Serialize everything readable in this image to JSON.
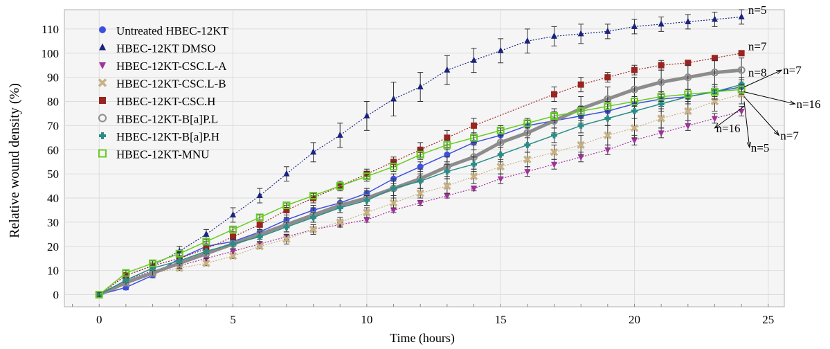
{
  "chart_data": {
    "type": "line",
    "title": "",
    "xlabel": "Time (hours)",
    "ylabel": "Relative wound density (%)",
    "xlim": [
      -1.3,
      25.6
    ],
    "ylim": [
      -5,
      118
    ],
    "x_ticks": [
      0,
      5,
      10,
      15,
      20,
      25
    ],
    "y_ticks": [
      0,
      10,
      20,
      30,
      40,
      50,
      60,
      70,
      80,
      90,
      100,
      110
    ],
    "grid": true,
    "legend_position": "top-left",
    "x": [
      0,
      1,
      2,
      3,
      4,
      5,
      6,
      7,
      8,
      9,
      10,
      11,
      12,
      13,
      14,
      15,
      16,
      17,
      18,
      19,
      20,
      21,
      22,
      23,
      24
    ],
    "series": [
      {
        "name": "Untreated HBEC-12KT",
        "color": "#3c50e0",
        "marker": "circle",
        "line": "solid",
        "values": [
          0,
          3,
          8,
          15,
          20,
          22,
          26,
          31,
          35,
          38,
          42,
          48,
          53,
          58,
          63,
          66,
          70,
          72,
          74,
          76,
          79,
          81,
          82,
          84,
          86
        ],
        "errors": [
          1,
          1,
          1,
          1,
          2,
          2,
          2,
          2,
          2,
          2,
          2,
          2,
          2,
          3,
          3,
          3,
          3,
          3,
          3,
          3,
          3,
          3,
          3,
          3,
          3
        ]
      },
      {
        "name": "HBEC-12KT DMSO",
        "color": "#1a237e",
        "marker": "triangle-up",
        "line": "dotted",
        "values": [
          0,
          8,
          12,
          18,
          25,
          33,
          41,
          50,
          59,
          66,
          74,
          81,
          86,
          93,
          97,
          101,
          105,
          107,
          108,
          109,
          111,
          112,
          113,
          114,
          115
        ],
        "errors": [
          1,
          1,
          1,
          2,
          2,
          3,
          3,
          3,
          4,
          5,
          6,
          7,
          6,
          6,
          5,
          5,
          5,
          4,
          4,
          3,
          3,
          3,
          3,
          3,
          3
        ]
      },
      {
        "name": "HBEC-12KT-CSC.L-A",
        "color": "#a0309a",
        "marker": "triangle-down",
        "line": "dotted",
        "values": [
          0,
          6,
          10,
          12,
          15,
          18,
          21,
          24,
          27,
          29,
          31,
          35,
          38,
          41,
          44,
          48,
          51,
          54,
          57,
          60,
          64,
          67,
          70,
          73,
          76
        ],
        "errors": [
          1,
          1,
          1,
          1,
          1,
          1,
          1,
          1,
          1,
          1,
          1,
          1,
          1,
          1,
          1,
          2,
          2,
          2,
          2,
          2,
          2,
          2,
          2,
          2,
          2
        ]
      },
      {
        "name": "HBEC-12KT-CSC.L-B",
        "color": "#c7b185",
        "marker": "x",
        "line": "dotted",
        "values": [
          0,
          5,
          9,
          11,
          13,
          16,
          20,
          23,
          27,
          30,
          34,
          38,
          42,
          45,
          49,
          53,
          56,
          59,
          62,
          66,
          69,
          73,
          76,
          80,
          83
        ],
        "errors": [
          1,
          1,
          1,
          1,
          1,
          1,
          1,
          2,
          2,
          2,
          2,
          2,
          2,
          3,
          3,
          3,
          3,
          3,
          4,
          4,
          4,
          4,
          4,
          4,
          4
        ]
      },
      {
        "name": "HBEC-12KT-CSC.H",
        "color": "#9a2420",
        "marker": "square",
        "line": "dotted",
        "values": [
          0,
          8,
          12,
          15,
          19,
          24,
          29,
          35,
          40,
          45,
          50,
          55,
          60,
          65,
          70,
          null,
          null,
          83,
          87,
          90,
          93,
          95,
          96,
          98,
          100
        ],
        "errors": [
          1,
          1,
          1,
          1,
          2,
          2,
          2,
          2,
          2,
          2,
          2,
          2,
          3,
          3,
          3,
          null,
          null,
          3,
          3,
          2,
          2,
          2,
          1,
          1,
          1
        ]
      },
      {
        "name": "HBEC-12KT-B[a]P.L",
        "color": "#8c8c8c",
        "marker": "circle-open",
        "line": "thick",
        "values": [
          0,
          5,
          9,
          13,
          17,
          21,
          25,
          29,
          33,
          37,
          40,
          44,
          48,
          53,
          57,
          63,
          67,
          72,
          77,
          81,
          85,
          88,
          90,
          92,
          93
        ],
        "errors": [
          1,
          1,
          1,
          2,
          2,
          2,
          2,
          3,
          3,
          3,
          3,
          4,
          4,
          4,
          5,
          5,
          5,
          5,
          5,
          5,
          5,
          5,
          5,
          5,
          5
        ]
      },
      {
        "name": "HBEC-12KT-B[a]P.H",
        "color": "#2a8c86",
        "marker": "plus",
        "line": "solid",
        "values": [
          0,
          6,
          11,
          14,
          18,
          21,
          24,
          28,
          32,
          36,
          39,
          44,
          47,
          51,
          54,
          58,
          62,
          66,
          70,
          73,
          76,
          79,
          82,
          84,
          87
        ],
        "errors": [
          1,
          1,
          1,
          1,
          1,
          2,
          2,
          2,
          2,
          2,
          2,
          3,
          3,
          3,
          3,
          3,
          3,
          3,
          3,
          3,
          3,
          3,
          3,
          3,
          3
        ]
      },
      {
        "name": "HBEC-12KT-MNU",
        "color": "#66cc22",
        "marker": "square-open",
        "line": "solid",
        "values": [
          0,
          9,
          13,
          17,
          22,
          27,
          32,
          37,
          41,
          45,
          49,
          53,
          58,
          62,
          65,
          68,
          71,
          74,
          76,
          78,
          80,
          82,
          83,
          84,
          85
        ],
        "errors": [
          1,
          1,
          1,
          1,
          1,
          1,
          1,
          1,
          1,
          1,
          2,
          2,
          2,
          2,
          2,
          2,
          2,
          2,
          2,
          2,
          2,
          2,
          2,
          2,
          2
        ]
      }
    ],
    "annotations": [
      {
        "text": "n=5",
        "x": 24.2,
        "y": 118,
        "pointer": false
      },
      {
        "text": "n=7",
        "x": 24.2,
        "y": 103,
        "pointer": false
      },
      {
        "text": "n=8",
        "x": 24.2,
        "y": 92,
        "pointer": false
      },
      {
        "text": "n=7",
        "x": 25.5,
        "y": 93,
        "pointer": true,
        "target_x": 24.1,
        "target_y": 86
      },
      {
        "text": "n=16",
        "x": 26.0,
        "y": 79,
        "pointer": true,
        "target_x": 24.1,
        "target_y": 84
      },
      {
        "text": "n=7",
        "x": 25.4,
        "y": 66,
        "pointer": true,
        "target_x": 24.1,
        "target_y": 82
      },
      {
        "text": "n=16",
        "x": 23.0,
        "y": 69,
        "pointer": true,
        "target_x": 24.1,
        "target_y": 78
      },
      {
        "text": "n=5",
        "x": 24.3,
        "y": 61,
        "pointer": true,
        "target_x": 24.1,
        "target_y": 80
      }
    ]
  }
}
